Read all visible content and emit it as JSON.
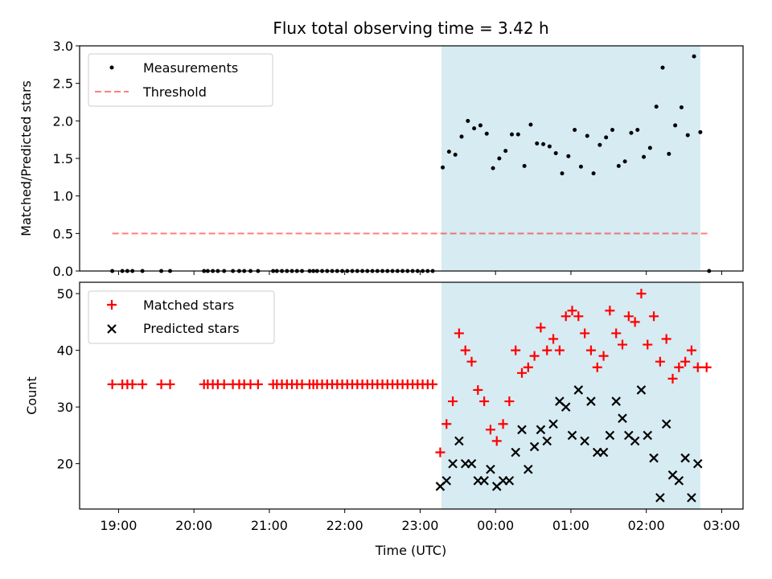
{
  "title": "Flux total observing time = 3.42 h",
  "colors": {
    "band": "#add8e6",
    "measurement": "#000000",
    "threshold": "#ff0000",
    "matched": "#ff0000",
    "predicted": "#000000"
  },
  "chart_data": [
    {
      "type": "scatter",
      "ylabel": "Matched/Predicted stars",
      "ylim": [
        0,
        3.0
      ],
      "xlim": [
        "18:29",
        "03:17"
      ],
      "yticks": [
        "0.0",
        "0.5",
        "1.0",
        "1.5",
        "2.0",
        "2.5",
        "3.0"
      ],
      "legend": {
        "placement": "top-left",
        "entries": [
          "Measurements",
          "Threshold"
        ]
      },
      "shaded_interval": [
        "23:17",
        "02:43"
      ],
      "threshold": {
        "name": "Threshold",
        "y": 0.5,
        "x_range": [
          "18:55",
          "02:50"
        ]
      },
      "series": [
        {
          "name": "Measurements",
          "points": [
            [
              "18:55",
              0
            ],
            [
              "19:03",
              0
            ],
            [
              "19:07",
              0
            ],
            [
              "19:11",
              0
            ],
            [
              "19:19",
              0
            ],
            [
              "19:34",
              0
            ],
            [
              "19:41",
              0
            ],
            [
              "20:08",
              0
            ],
            [
              "20:11",
              0
            ],
            [
              "20:15",
              0
            ],
            [
              "20:19",
              0
            ],
            [
              "20:24",
              0
            ],
            [
              "20:31",
              0
            ],
            [
              "20:36",
              0
            ],
            [
              "20:40",
              0
            ],
            [
              "20:45",
              0
            ],
            [
              "20:51",
              0
            ],
            [
              "21:03",
              0
            ],
            [
              "21:06",
              0
            ],
            [
              "21:10",
              0
            ],
            [
              "21:14",
              0
            ],
            [
              "21:18",
              0
            ],
            [
              "21:22",
              0
            ],
            [
              "21:26",
              0
            ],
            [
              "21:32",
              0
            ],
            [
              "21:35",
              0
            ],
            [
              "21:38",
              0
            ],
            [
              "21:42",
              0
            ],
            [
              "21:46",
              0
            ],
            [
              "21:50",
              0
            ],
            [
              "21:54",
              0
            ],
            [
              "21:58",
              0
            ],
            [
              "22:02",
              0
            ],
            [
              "22:06",
              0
            ],
            [
              "22:10",
              0
            ],
            [
              "22:14",
              0
            ],
            [
              "22:18",
              0
            ],
            [
              "22:22",
              0
            ],
            [
              "22:26",
              0
            ],
            [
              "22:30",
              0
            ],
            [
              "22:34",
              0
            ],
            [
              "22:38",
              0
            ],
            [
              "22:42",
              0
            ],
            [
              "22:46",
              0
            ],
            [
              "22:50",
              0
            ],
            [
              "22:54",
              0
            ],
            [
              "22:58",
              0
            ],
            [
              "23:02",
              0
            ],
            [
              "23:06",
              0
            ],
            [
              "23:10",
              0
            ],
            [
              "23:18",
              1.38
            ],
            [
              "23:23",
              1.59
            ],
            [
              "23:28",
              1.55
            ],
            [
              "23:33",
              1.79
            ],
            [
              "23:38",
              2.0
            ],
            [
              "23:43",
              1.9
            ],
            [
              "23:48",
              1.94
            ],
            [
              "23:53",
              1.83
            ],
            [
              "23:58",
              1.37
            ],
            [
              "00:03",
              1.5
            ],
            [
              "00:08",
              1.6
            ],
            [
              "00:13",
              1.82
            ],
            [
              "00:18",
              1.82
            ],
            [
              "00:23",
              1.4
            ],
            [
              "00:28",
              1.95
            ],
            [
              "00:33",
              1.7
            ],
            [
              "00:38",
              1.69
            ],
            [
              "00:43",
              1.66
            ],
            [
              "00:48",
              1.57
            ],
            [
              "00:53",
              1.3
            ],
            [
              "00:58",
              1.53
            ],
            [
              "01:03",
              1.88
            ],
            [
              "01:08",
              1.39
            ],
            [
              "01:13",
              1.8
            ],
            [
              "01:18",
              1.3
            ],
            [
              "01:23",
              1.68
            ],
            [
              "01:28",
              1.78
            ],
            [
              "01:33",
              1.88
            ],
            [
              "01:38",
              1.4
            ],
            [
              "01:43",
              1.46
            ],
            [
              "01:48",
              1.84
            ],
            [
              "01:53",
              1.88
            ],
            [
              "01:58",
              1.52
            ],
            [
              "02:03",
              1.64
            ],
            [
              "02:08",
              2.19
            ],
            [
              "02:13",
              2.71
            ],
            [
              "02:18",
              1.56
            ],
            [
              "02:23",
              1.94
            ],
            [
              "02:28",
              2.18
            ],
            [
              "02:33",
              1.81
            ],
            [
              "02:38",
              2.86
            ],
            [
              "02:43",
              1.85
            ],
            [
              "02:50",
              0
            ]
          ]
        }
      ]
    },
    {
      "type": "scatter",
      "xlabel": "Time (UTC)",
      "ylabel": "Count",
      "ylim": [
        12,
        52
      ],
      "xlim": [
        "18:29",
        "03:17"
      ],
      "xticks": [
        "19:00",
        "20:00",
        "21:00",
        "22:00",
        "23:00",
        "00:00",
        "01:00",
        "02:00",
        "03:00"
      ],
      "yticks": [
        "20",
        "30",
        "40",
        "50"
      ],
      "legend": {
        "placement": "top-left",
        "entries": [
          "Matched stars",
          "Predicted stars"
        ]
      },
      "shaded_interval": [
        "23:17",
        "02:43"
      ],
      "series": [
        {
          "name": "Matched stars",
          "points": [
            [
              "18:55",
              34
            ],
            [
              "19:03",
              34
            ],
            [
              "19:07",
              34
            ],
            [
              "19:11",
              34
            ],
            [
              "19:19",
              34
            ],
            [
              "19:34",
              34
            ],
            [
              "19:41",
              34
            ],
            [
              "20:08",
              34
            ],
            [
              "20:11",
              34
            ],
            [
              "20:15",
              34
            ],
            [
              "20:19",
              34
            ],
            [
              "20:24",
              34
            ],
            [
              "20:31",
              34
            ],
            [
              "20:36",
              34
            ],
            [
              "20:40",
              34
            ],
            [
              "20:45",
              34
            ],
            [
              "20:51",
              34
            ],
            [
              "21:03",
              34
            ],
            [
              "21:06",
              34
            ],
            [
              "21:10",
              34
            ],
            [
              "21:14",
              34
            ],
            [
              "21:18",
              34
            ],
            [
              "21:22",
              34
            ],
            [
              "21:26",
              34
            ],
            [
              "21:32",
              34
            ],
            [
              "21:35",
              34
            ],
            [
              "21:38",
              34
            ],
            [
              "21:42",
              34
            ],
            [
              "21:46",
              34
            ],
            [
              "21:50",
              34
            ],
            [
              "21:54",
              34
            ],
            [
              "21:58",
              34
            ],
            [
              "22:02",
              34
            ],
            [
              "22:06",
              34
            ],
            [
              "22:10",
              34
            ],
            [
              "22:14",
              34
            ],
            [
              "22:18",
              34
            ],
            [
              "22:22",
              34
            ],
            [
              "22:26",
              34
            ],
            [
              "22:30",
              34
            ],
            [
              "22:34",
              34
            ],
            [
              "22:38",
              34
            ],
            [
              "22:42",
              34
            ],
            [
              "22:46",
              34
            ],
            [
              "22:50",
              34
            ],
            [
              "22:54",
              34
            ],
            [
              "22:58",
              34
            ],
            [
              "23:02",
              34
            ],
            [
              "23:06",
              34
            ],
            [
              "23:10",
              34
            ],
            [
              "23:16",
              22
            ],
            [
              "23:21",
              27
            ],
            [
              "23:26",
              31
            ],
            [
              "23:31",
              43
            ],
            [
              "23:36",
              40
            ],
            [
              "23:41",
              38
            ],
            [
              "23:46",
              33
            ],
            [
              "23:51",
              31
            ],
            [
              "23:56",
              26
            ],
            [
              "00:01",
              24
            ],
            [
              "00:06",
              27
            ],
            [
              "00:11",
              31
            ],
            [
              "00:16",
              40
            ],
            [
              "00:21",
              36
            ],
            [
              "00:26",
              37
            ],
            [
              "00:31",
              39
            ],
            [
              "00:36",
              44
            ],
            [
              "00:41",
              40
            ],
            [
              "00:46",
              42
            ],
            [
              "00:51",
              40
            ],
            [
              "00:56",
              46
            ],
            [
              "01:01",
              47
            ],
            [
              "01:06",
              46
            ],
            [
              "01:11",
              43
            ],
            [
              "01:16",
              40
            ],
            [
              "01:21",
              37
            ],
            [
              "01:26",
              39
            ],
            [
              "01:31",
              47
            ],
            [
              "01:36",
              43
            ],
            [
              "01:41",
              41
            ],
            [
              "01:46",
              46
            ],
            [
              "01:51",
              45
            ],
            [
              "01:56",
              50
            ],
            [
              "02:01",
              41
            ],
            [
              "02:06",
              46
            ],
            [
              "02:11",
              38
            ],
            [
              "02:16",
              42
            ],
            [
              "02:21",
              35
            ],
            [
              "02:26",
              37
            ],
            [
              "02:31",
              38
            ],
            [
              "02:36",
              40
            ],
            [
              "02:41",
              37
            ],
            [
              "02:48",
              37
            ]
          ]
        },
        {
          "name": "Predicted stars",
          "points": [
            [
              "23:16",
              16
            ],
            [
              "23:21",
              17
            ],
            [
              "23:26",
              20
            ],
            [
              "23:31",
              24
            ],
            [
              "23:36",
              20
            ],
            [
              "23:41",
              20
            ],
            [
              "23:46",
              17
            ],
            [
              "23:51",
              17
            ],
            [
              "23:56",
              19
            ],
            [
              "00:01",
              16
            ],
            [
              "00:06",
              17
            ],
            [
              "00:11",
              17
            ],
            [
              "00:16",
              22
            ],
            [
              "00:21",
              26
            ],
            [
              "00:26",
              19
            ],
            [
              "00:31",
              23
            ],
            [
              "00:36",
              26
            ],
            [
              "00:41",
              24
            ],
            [
              "00:46",
              27
            ],
            [
              "00:51",
              31
            ],
            [
              "00:56",
              30
            ],
            [
              "01:01",
              25
            ],
            [
              "01:06",
              33
            ],
            [
              "01:11",
              24
            ],
            [
              "01:16",
              31
            ],
            [
              "01:21",
              22
            ],
            [
              "01:26",
              22
            ],
            [
              "01:31",
              25
            ],
            [
              "01:36",
              31
            ],
            [
              "01:41",
              28
            ],
            [
              "01:46",
              25
            ],
            [
              "01:51",
              24
            ],
            [
              "01:56",
              33
            ],
            [
              "02:01",
              25
            ],
            [
              "02:06",
              21
            ],
            [
              "02:11",
              14
            ],
            [
              "02:16",
              27
            ],
            [
              "02:21",
              18
            ],
            [
              "02:26",
              17
            ],
            [
              "02:31",
              21
            ],
            [
              "02:36",
              14
            ],
            [
              "02:41",
              20
            ]
          ]
        }
      ]
    }
  ]
}
